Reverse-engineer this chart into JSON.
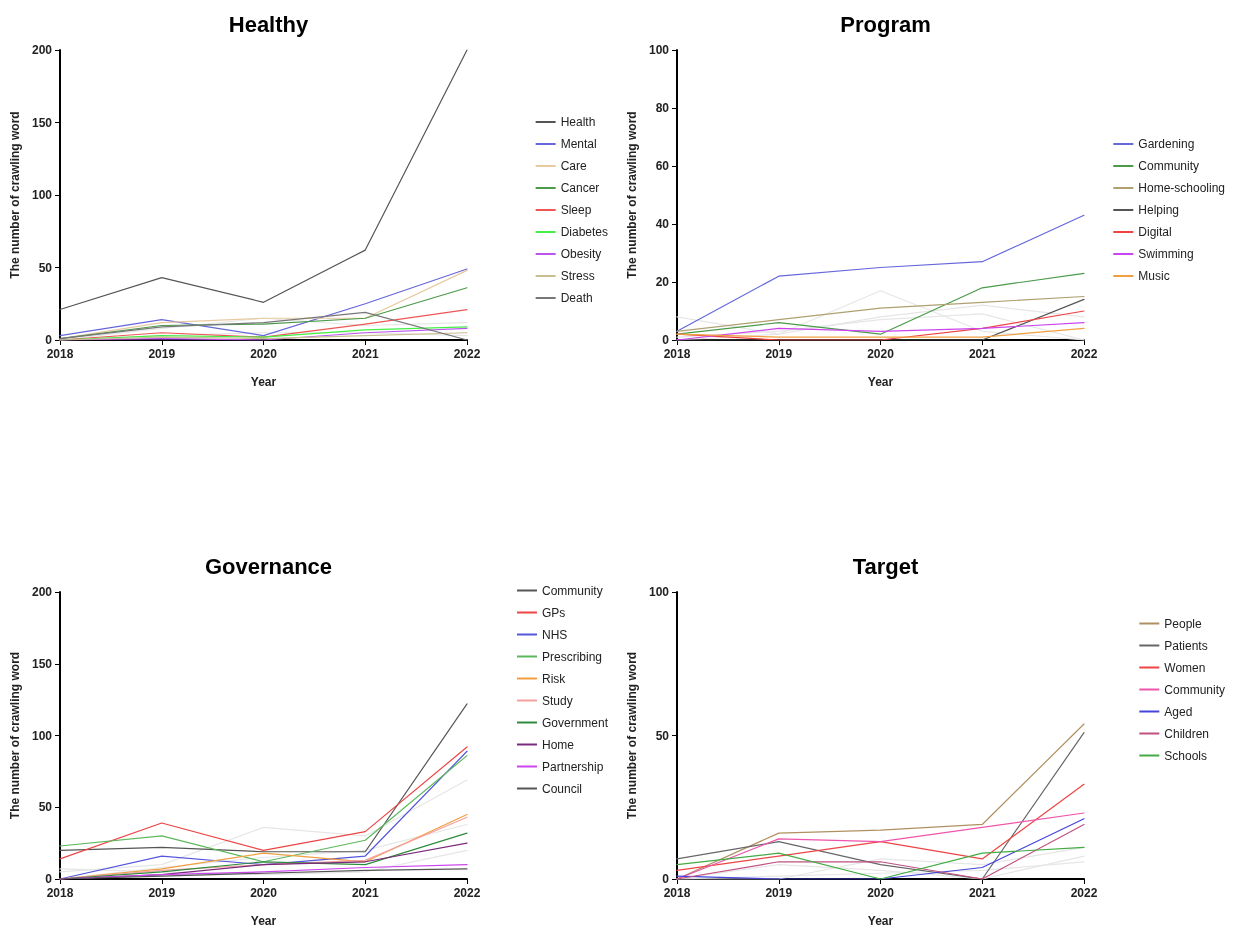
{
  "chart_data": [
    {
      "type": "line",
      "title": "Healthy",
      "xlabel": "Year",
      "ylabel": "The number of crawling word",
      "x": [
        2018,
        2019,
        2020,
        2021,
        2022
      ],
      "xlim": [
        2018,
        2022
      ],
      "xticks": [
        2018,
        2019,
        2020,
        2021,
        2022
      ],
      "ylim": [
        0,
        200
      ],
      "yticks": [
        0,
        50,
        100,
        150,
        200
      ],
      "grid": false,
      "legend": "right",
      "marker": "none",
      "series": [
        {
          "color": "#e6e6e6",
          "values": [
            0,
            8,
            15,
            10,
            12
          ]
        },
        {
          "color": "#e6e6e6",
          "values": [
            0,
            3,
            5,
            5,
            3
          ]
        },
        {
          "name": "Health",
          "color": "#555555",
          "values": [
            21,
            43,
            26,
            62,
            200
          ]
        },
        {
          "name": "Mental",
          "color": "#6666dd",
          "values": [
            3,
            14,
            3,
            25,
            49
          ]
        },
        {
          "name": "Care",
          "color": "#e8c9a0",
          "values": [
            1,
            12,
            15,
            15,
            48
          ]
        },
        {
          "name": "Cancer",
          "color": "#4a9a4a",
          "values": [
            1,
            10,
            11,
            15,
            36
          ]
        },
        {
          "name": "Sleep",
          "color": "#ee5555",
          "values": [
            0,
            5,
            2,
            11,
            21
          ]
        },
        {
          "name": "Diabetes",
          "color": "#44ee44",
          "values": [
            0,
            3,
            2,
            7,
            9
          ]
        },
        {
          "name": "Obesity",
          "color": "#bb55ee",
          "values": [
            0,
            1,
            0,
            5,
            8
          ]
        },
        {
          "name": "Stress",
          "color": "#c8c090",
          "values": [
            0,
            2,
            1,
            3,
            5
          ]
        },
        {
          "name": "Death",
          "color": "#777777",
          "values": [
            1,
            9,
            12,
            19,
            0
          ]
        }
      ]
    },
    {
      "type": "line",
      "title": "Program",
      "xlabel": "Year",
      "ylabel": "The number of crawling word",
      "x": [
        2018,
        2019,
        2020,
        2021,
        2022
      ],
      "xlim": [
        2018,
        2022
      ],
      "xticks": [
        2018,
        2019,
        2020,
        2021,
        2022
      ],
      "ylim": [
        0,
        100
      ],
      "yticks": [
        0,
        20,
        40,
        60,
        80,
        100
      ],
      "grid": false,
      "legend": "right",
      "marker": "none",
      "series": [
        {
          "color": "#e6e6e6",
          "values": [
            8,
            2,
            17,
            3,
            0
          ]
        },
        {
          "color": "#e6e6e6",
          "values": [
            0,
            2,
            8,
            12,
            8
          ]
        },
        {
          "color": "#e6e6e6",
          "values": [
            1,
            3,
            7,
            9,
            0
          ]
        },
        {
          "name": "Gardening",
          "color": "#6666dd",
          "values": [
            3,
            22,
            25,
            27,
            43
          ]
        },
        {
          "name": "Community",
          "color": "#4a9a4a",
          "values": [
            2,
            6,
            2,
            18,
            23
          ]
        },
        {
          "name": "Home-schooling",
          "color": "#b0a070",
          "values": [
            3,
            7,
            11,
            13,
            15
          ]
        },
        {
          "name": "Helping",
          "color": "#555555",
          "values": [
            0,
            0,
            0,
            0,
            14
          ]
        },
        {
          "name": "Digital",
          "color": "#ee4444",
          "values": [
            2,
            0,
            0,
            4,
            10
          ]
        },
        {
          "name": "Swimming",
          "color": "#cc44ee",
          "values": [
            0,
            4,
            3,
            4,
            6
          ]
        },
        {
          "name": "Music",
          "color": "#f0a040",
          "values": [
            2,
            1,
            1,
            1,
            4
          ]
        }
      ]
    },
    {
      "type": "line",
      "title": "Governance",
      "xlabel": "Year",
      "ylabel": "The number of crawling word",
      "x": [
        2018,
        2019,
        2020,
        2021,
        2022
      ],
      "xlim": [
        2018,
        2022
      ],
      "xticks": [
        2018,
        2019,
        2020,
        2021,
        2022
      ],
      "ylim": [
        0,
        200
      ],
      "yticks": [
        0,
        50,
        100,
        150,
        200
      ],
      "grid": false,
      "legend": "right",
      "marker": "none",
      "series": [
        {
          "color": "#e6e6e6",
          "values": [
            5,
            10,
            36,
            30,
            69
          ]
        },
        {
          "color": "#e6e6e6",
          "values": [
            0,
            8,
            15,
            20,
            38
          ]
        },
        {
          "color": "#e6e6e6",
          "values": [
            7,
            5,
            3,
            5,
            20
          ]
        },
        {
          "name": "Community",
          "color": "#555555",
          "values": [
            20,
            22,
            19,
            19,
            122
          ]
        },
        {
          "name": "GPs",
          "color": "#ee4444",
          "values": [
            14,
            39,
            20,
            33,
            92
          ]
        },
        {
          "name": "NHS",
          "color": "#5555dd",
          "values": [
            0,
            16,
            10,
            16,
            89
          ]
        },
        {
          "name": "Prescribing",
          "color": "#5cb85c",
          "values": [
            23,
            30,
            12,
            27,
            86
          ]
        },
        {
          "name": "Risk",
          "color": "#f0a040",
          "values": [
            0,
            7,
            18,
            12,
            45
          ]
        },
        {
          "name": "Study",
          "color": "#f4a0a0",
          "values": [
            0,
            6,
            10,
            13,
            43
          ]
        },
        {
          "name": "Government",
          "color": "#2e8b3e",
          "values": [
            0,
            5,
            12,
            10,
            32
          ]
        },
        {
          "name": "Home",
          "color": "#7a2a7a",
          "values": [
            0,
            3,
            10,
            12,
            25
          ]
        },
        {
          "name": "Partnership",
          "color": "#cc44ee",
          "values": [
            0,
            3,
            5,
            8,
            10
          ]
        },
        {
          "name": "Council",
          "color": "#555555",
          "values": [
            0,
            2,
            4,
            6,
            7
          ]
        }
      ]
    },
    {
      "type": "line",
      "title": "Target",
      "xlabel": "Year",
      "ylabel": "The number of crawling word",
      "x": [
        2018,
        2019,
        2020,
        2021,
        2022
      ],
      "xlim": [
        2018,
        2022
      ],
      "xticks": [
        2018,
        2019,
        2020,
        2021,
        2022
      ],
      "ylim": [
        0,
        100
      ],
      "yticks": [
        0,
        50,
        100
      ],
      "grid": false,
      "legend": "right",
      "marker": "none",
      "series": [
        {
          "color": "#e6e6e6",
          "values": [
            0,
            0,
            7,
            5,
            11
          ]
        },
        {
          "color": "#e6e6e6",
          "values": [
            0,
            5,
            3,
            0,
            8
          ]
        },
        {
          "color": "#e6e6e6",
          "values": [
            0,
            1,
            2,
            3,
            6
          ]
        },
        {
          "name": "People",
          "color": "#b09060",
          "values": [
            0,
            16,
            17,
            19,
            54
          ]
        },
        {
          "name": "Patients",
          "color": "#666666",
          "values": [
            7,
            13,
            5,
            0,
            51
          ]
        },
        {
          "name": "Women",
          "color": "#ee4444",
          "values": [
            3,
            8,
            13,
            7,
            33
          ]
        },
        {
          "name": "Community",
          "color": "#ee55aa",
          "values": [
            0,
            14,
            13,
            18,
            23
          ]
        },
        {
          "name": "Aged",
          "color": "#4444dd",
          "values": [
            1,
            0,
            0,
            4,
            21
          ]
        },
        {
          "name": "Children",
          "color": "#c05080",
          "values": [
            0,
            6,
            6,
            0,
            19
          ]
        },
        {
          "name": "Schools",
          "color": "#44aa44",
          "values": [
            5,
            9,
            0,
            9,
            11
          ]
        }
      ]
    }
  ]
}
